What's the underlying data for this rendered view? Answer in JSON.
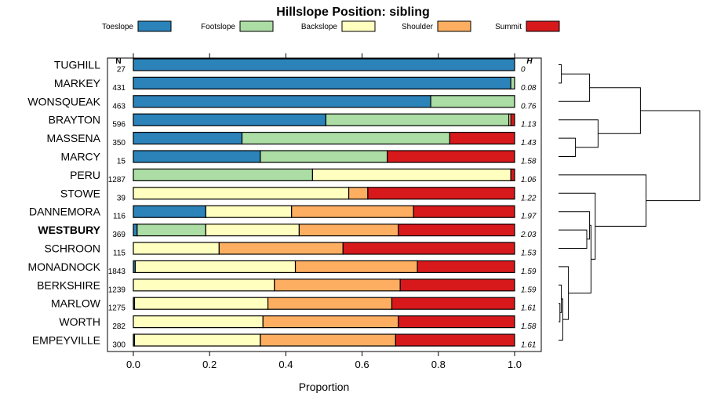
{
  "chart_data": {
    "type": "bar",
    "stacked": true,
    "orientation": "horizontal",
    "title": "Hillslope Position: sibling",
    "xlabel": "Proportion",
    "ylabel": "",
    "xlim": [
      0,
      1
    ],
    "x_ticks": [
      "0.0",
      "0.2",
      "0.4",
      "0.6",
      "0.8",
      "1.0"
    ],
    "n_header": "N",
    "h_header": "H",
    "emphasized_category": "WESTBURY",
    "series": [
      {
        "name": "Toeslope",
        "color": "#2b83ba"
      },
      {
        "name": "Footslope",
        "color": "#abdda4"
      },
      {
        "name": "Backslope",
        "color": "#ffffbf"
      },
      {
        "name": "Shoulder",
        "color": "#fdae61"
      },
      {
        "name": "Summit",
        "color": "#d7191c"
      }
    ],
    "categories": [
      "TUGHILL",
      "MARKEY",
      "WONSQUEAK",
      "BRAYTON",
      "MASSENA",
      "MARCY",
      "PERU",
      "STOWE",
      "DANNEMORA",
      "WESTBURY",
      "SCHROON",
      "MONADNOCK",
      "BERKSHIRE",
      "MARLOW",
      "WORTH",
      "EMPEYVILLE"
    ],
    "n": [
      "27",
      "431",
      "463",
      "596",
      "350",
      "15",
      "1287",
      "39",
      "116",
      "369",
      "115",
      "1843",
      "1239",
      "1275",
      "282",
      "300"
    ],
    "h": [
      "0",
      "0.08",
      "0.76",
      "1.13",
      "1.43",
      "1.58",
      "1.06",
      "1.22",
      "1.97",
      "2.03",
      "1.53",
      "1.59",
      "1.59",
      "1.61",
      "1.58",
      "1.61"
    ],
    "values": [
      [
        1.0,
        0.0,
        0.0,
        0.0,
        0.0
      ],
      [
        0.99,
        0.01,
        0.0,
        0.0,
        0.0
      ],
      [
        0.78,
        0.22,
        0.0,
        0.0,
        0.0
      ],
      [
        0.505,
        0.48,
        0.005,
        0.0,
        0.01
      ],
      [
        0.285,
        0.545,
        0.0,
        0.0,
        0.17
      ],
      [
        0.333,
        0.333,
        0.0,
        0.0,
        0.334
      ],
      [
        0.0,
        0.47,
        0.52,
        0.0,
        0.01
      ],
      [
        0.0,
        0.0,
        0.565,
        0.05,
        0.385
      ],
      [
        0.19,
        0.0,
        0.225,
        0.32,
        0.265
      ],
      [
        0.01,
        0.18,
        0.245,
        0.26,
        0.305
      ],
      [
        0.0,
        0.0,
        0.225,
        0.325,
        0.45
      ],
      [
        0.005,
        0.0,
        0.42,
        0.32,
        0.255
      ],
      [
        0.0,
        0.0,
        0.37,
        0.33,
        0.3
      ],
      [
        0.003,
        0.0,
        0.35,
        0.325,
        0.322
      ],
      [
        0.0,
        0.0,
        0.34,
        0.355,
        0.305
      ],
      [
        0.003,
        0.0,
        0.33,
        0.355,
        0.312
      ]
    ],
    "dendrogram": {
      "leaf_order": [
        "TUGHILL",
        "MARKEY",
        "WONSQUEAK",
        "BRAYTON",
        "MASSENA",
        "MARCY",
        "PERU",
        "STOWE",
        "DANNEMORA",
        "WESTBURY",
        "SCHROON",
        "MONADNOCK",
        "BERKSHIRE",
        "MARLOW",
        "WORTH",
        "EMPEYVILLE"
      ],
      "merges": [
        {
          "a": "L0",
          "b": "L1",
          "height": 0.02
        },
        {
          "a": "M0",
          "b": "L2",
          "height": 0.22
        },
        {
          "a": "L4",
          "b": "L5",
          "height": 0.12
        },
        {
          "a": "L3",
          "b": "M2",
          "height": 0.28
        },
        {
          "a": "M1",
          "b": "M3",
          "height": 0.58
        },
        {
          "a": "L13",
          "b": "L14",
          "height": 0.01
        },
        {
          "a": "L12",
          "b": "M5",
          "height": 0.02
        },
        {
          "a": "M6",
          "b": "L15",
          "height": 0.03
        },
        {
          "a": "L11",
          "b": "M7",
          "height": 0.07
        },
        {
          "a": "L9",
          "b": "L10",
          "height": 0.2
        },
        {
          "a": "L8",
          "b": "M9",
          "height": 0.22
        },
        {
          "a": "M10",
          "b": "M8",
          "height": 0.23
        },
        {
          "a": "L7",
          "b": "M11",
          "height": 0.26
        },
        {
          "a": "L6",
          "b": "M12",
          "height": 0.62
        },
        {
          "a": "M4",
          "b": "M13",
          "height": 1.0
        }
      ]
    }
  }
}
